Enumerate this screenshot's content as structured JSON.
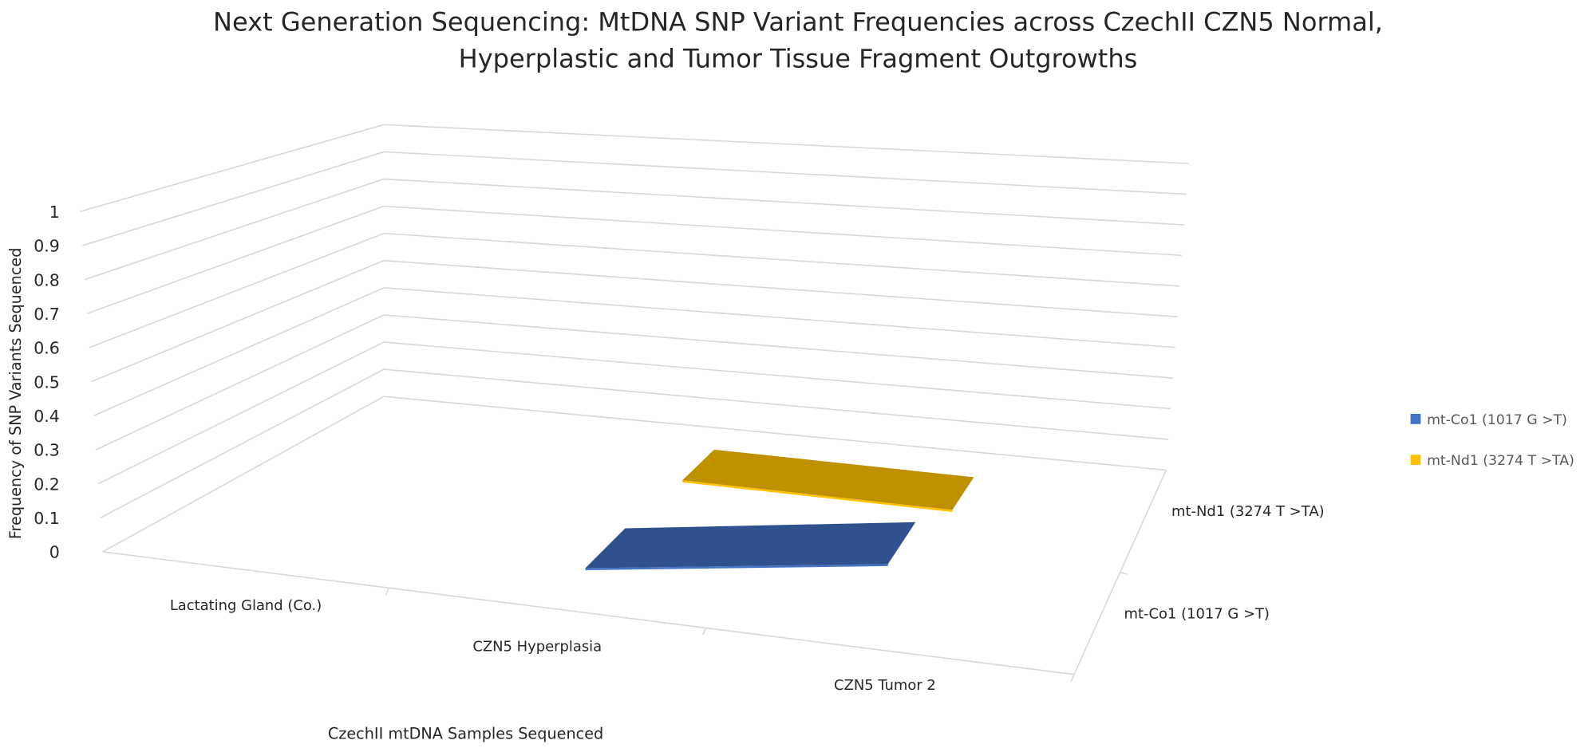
{
  "chart_data": {
    "type": "area",
    "title": [
      "Next Generation Sequencing: MtDNA SNP Variant Frequencies across CzechII CZN5 Normal,",
      "Hyperplastic and Tumor Tissue Fragment Outgrowths"
    ],
    "xlabel": "CzechII mtDNA Samples Sequenced",
    "ylabel": "Frequency of SNP Variants Sequenced",
    "categories": [
      "Lactating Gland (Co.)",
      "CZN5 Hyperplasia",
      "CZN5 Tumor 2"
    ],
    "depth_labels": [
      "mt-Co1 (1017 G >T)",
      "mt-Nd1 (3274 T >TA)"
    ],
    "yticks": [
      "0",
      "0.1",
      "0.2",
      "0.3",
      "0.4",
      "0.5",
      "0.6",
      "0.7",
      "0.8",
      "0.9",
      "1"
    ],
    "ylim": [
      0,
      1
    ],
    "grid": true,
    "three_d": true,
    "legend_position": "right",
    "series": [
      {
        "name": "mt-Co1 (1017 G >T)",
        "values": [
          null,
          0,
          0
        ],
        "color": "#4472C4"
      },
      {
        "name": "mt-Nd1 (3274 T >TA)",
        "values": [
          null,
          0,
          0
        ],
        "color": "#FFC000"
      }
    ]
  }
}
